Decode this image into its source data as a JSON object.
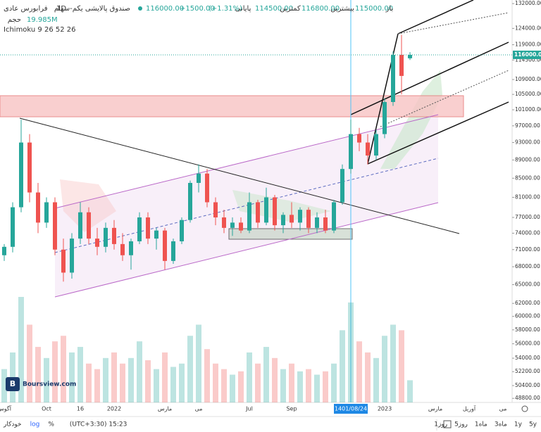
{
  "chart_data": {
    "type": "candlestick",
    "exchange": "فرابورس عادی",
    "interval": "1D",
    "symbol": "صندوق پالایشی یکم-سهام",
    "open_label": "باز",
    "open_value": "115000.00",
    "high_label": "بیشترین",
    "high_value": "116800.00",
    "low_label": "کمترین",
    "low_value": "114500.00",
    "close_label": "پایانی",
    "close_value": "116000.00",
    "change": "+1500.00",
    "change_pct": "(+1.31%)",
    "volume_label": "حجم",
    "volume_value": "19.985M",
    "indicator": "Ichimoku 9 26 52 26",
    "watermark": "Boursview.com",
    "log": true,
    "up_color": "#26a69a",
    "down_color": "#ef5350",
    "ylim": [
      48300,
      133200
    ],
    "yticks": [
      {
        "value": 132000,
        "label": "132000.00"
      },
      {
        "value": 124000,
        "label": "124000.00"
      },
      {
        "value": 119000,
        "label": "119000.00"
      },
      {
        "value": 114500,
        "label": "114500.00"
      },
      {
        "value": 109000,
        "label": "109000.00"
      },
      {
        "value": 105000,
        "label": "105000.00"
      },
      {
        "value": 101000,
        "label": "101000.00"
      },
      {
        "value": 97000,
        "label": "97000.00"
      },
      {
        "value": 93000,
        "label": "93000.00"
      },
      {
        "value": 89000,
        "label": "89000.00"
      },
      {
        "value": 85000,
        "label": "85000.00"
      },
      {
        "value": 81000,
        "label": "81000.00"
      },
      {
        "value": 77000,
        "label": "77000.00"
      },
      {
        "value": 74000,
        "label": "74000.00"
      },
      {
        "value": 71000,
        "label": "71000.00"
      },
      {
        "value": 68000,
        "label": "68000.00"
      },
      {
        "value": 65000,
        "label": "65000.00"
      },
      {
        "value": 62000,
        "label": "62000.00"
      },
      {
        "value": 60000,
        "label": "60000.00"
      },
      {
        "value": 58000,
        "label": "58000.00"
      },
      {
        "value": 56000,
        "label": "56000.00"
      },
      {
        "value": 54000,
        "label": "54000.00"
      },
      {
        "value": 52200,
        "label": "52200.00"
      },
      {
        "value": 50400,
        "label": "50400.00"
      },
      {
        "value": 48800,
        "label": "48800.00"
      }
    ],
    "last_price": {
      "value": 116000,
      "label": "116000.00"
    },
    "categories": [
      "آگوس",
      null,
      null,
      null,
      null,
      "Oct",
      null,
      null,
      null,
      "16",
      null,
      null,
      null,
      "2022",
      null,
      null,
      null,
      null,
      null,
      "مارس",
      null,
      null,
      null,
      "می",
      null,
      null,
      null,
      null,
      null,
      "Jul",
      null,
      null,
      null,
      null,
      "Sep",
      null,
      null,
      null,
      null,
      null,
      null,
      "1401/08/24",
      null,
      null,
      null,
      "2023",
      null,
      null,
      null,
      null,
      null,
      "مارس",
      null,
      null,
      null,
      "آوریل",
      null,
      null,
      null,
      "می"
    ],
    "open": [
      70000,
      71500,
      79000,
      93000,
      82000,
      76000,
      80000,
      71000,
      67000,
      73000,
      78000,
      73000,
      71500,
      75000,
      72000,
      70000,
      72500,
      77000,
      73000,
      74500,
      69000,
      72500,
      76500,
      84000,
      86000,
      80000,
      77000,
      75000,
      76000,
      74500,
      80000,
      76000,
      81000,
      75500,
      77500,
      76000,
      78500,
      75000,
      77000,
      74500,
      80000,
      87000,
      95000,
      93000,
      90000,
      95000,
      103000,
      116000,
      115000,
      null,
      null,
      null,
      null,
      null,
      null,
      null,
      null,
      null,
      null,
      null
    ],
    "high": [
      72000,
      80000,
      98500,
      95000,
      84000,
      81000,
      81000,
      73000,
      74000,
      80000,
      79000,
      75000,
      76000,
      76500,
      74000,
      73000,
      78000,
      78000,
      75000,
      75000,
      73000,
      77000,
      84500,
      88000,
      87000,
      81000,
      78500,
      77000,
      77000,
      82000,
      80500,
      83000,
      81500,
      78000,
      80000,
      79000,
      79000,
      78000,
      78500,
      80500,
      88000,
      98500,
      96500,
      95000,
      96000,
      104000,
      117000,
      122000,
      116800,
      null,
      null,
      null,
      null,
      null,
      null,
      null,
      null,
      null,
      null,
      null
    ],
    "low": [
      69000,
      70500,
      78000,
      80000,
      74000,
      75000,
      70000,
      65500,
      66000,
      72000,
      72000,
      70000,
      70500,
      71000,
      69000,
      67500,
      72000,
      72000,
      71000,
      67500,
      68500,
      72000,
      76000,
      82000,
      79000,
      75500,
      74000,
      73500,
      74000,
      74000,
      75000,
      75500,
      74500,
      74000,
      75000,
      74500,
      74000,
      74000,
      74000,
      74000,
      79500,
      86000,
      91000,
      88000,
      89000,
      94000,
      102000,
      105000,
      114500,
      null,
      null,
      null,
      null,
      null,
      null,
      null,
      null,
      null,
      null,
      null
    ],
    "close": [
      71500,
      79000,
      93000,
      82000,
      76000,
      80000,
      71000,
      67000,
      73000,
      78000,
      73000,
      71500,
      75000,
      72000,
      70000,
      72500,
      77000,
      73000,
      74500,
      69000,
      72500,
      76500,
      84000,
      86000,
      80000,
      77000,
      75000,
      76000,
      74500,
      80000,
      76000,
      81000,
      75500,
      77500,
      76000,
      78500,
      75000,
      77000,
      74500,
      80000,
      87000,
      95000,
      93000,
      90000,
      95000,
      103000,
      116000,
      110000,
      116000,
      null,
      null,
      null,
      null,
      null,
      null,
      null,
      null,
      null,
      null,
      null
    ],
    "volume": [
      30000000,
      45000000,
      95000000,
      70000000,
      50000000,
      40000000,
      55000000,
      60000000,
      45000000,
      50000000,
      35000000,
      30000000,
      40000000,
      45000000,
      35000000,
      40000000,
      55000000,
      38000000,
      30000000,
      45000000,
      32000000,
      35000000,
      60000000,
      70000000,
      48000000,
      35000000,
      30000000,
      25000000,
      28000000,
      45000000,
      35000000,
      50000000,
      40000000,
      30000000,
      35000000,
      28000000,
      30000000,
      25000000,
      28000000,
      35000000,
      65000000,
      90000000,
      55000000,
      45000000,
      40000000,
      60000000,
      70000000,
      65000000,
      19985000,
      null,
      null,
      null,
      null,
      null,
      null,
      null,
      null,
      null,
      null,
      null
    ],
    "toolbar": [
      "5y",
      "1y",
      "3ماه",
      "1ماه",
      "5روز",
      "1روز"
    ],
    "bottom_right": [
      "خودکار",
      "log",
      "%"
    ],
    "timezone": "(UTC+3:30) 15:23"
  }
}
